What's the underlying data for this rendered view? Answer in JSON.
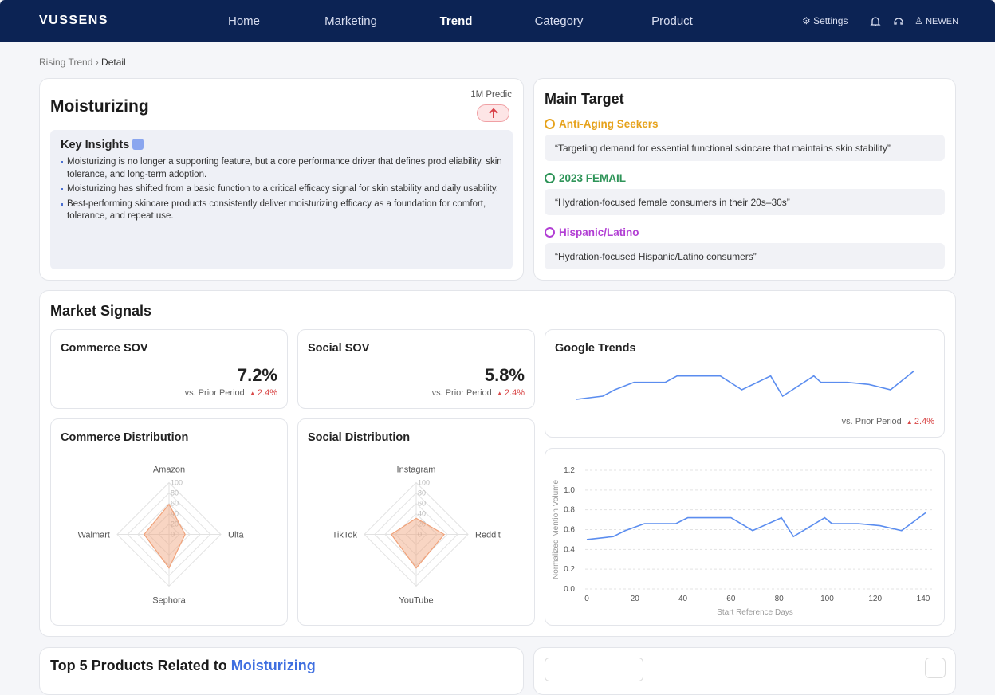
{
  "nav": {
    "brand": "VUSSENS",
    "items": [
      "Home",
      "Marketing",
      "Trend",
      "Category",
      "Product"
    ],
    "settings": "Settings",
    "user": "NEWEN"
  },
  "breadcrumb": [
    "Rising Trend",
    "Detail"
  ],
  "trend": {
    "title": "Moisturizing",
    "prediction_label": "1M Predic",
    "insights_title": "Key Insights",
    "insights": [
      "Moisturizing is no longer a supporting feature, but a core performance driver that defines prod eliability, skin tolerance, and long-term adoption.",
      "Moisturizing has shifted from a basic function to a critical efficacy signal for skin stability and daily usability.",
      "Best-performing skincare products consistently deliver moisturizing efficacy as a foundation for comfort, tolerance, and repeat use."
    ]
  },
  "main_target": {
    "title": "Main Target",
    "targets": [
      {
        "name": "Anti-Aging Seekers",
        "color": "#e6a21b",
        "quote": "“Targeting demand for essential functional skincare that maintains skin stability”"
      },
      {
        "name": "2023 FEMAIL",
        "color": "#2e9458",
        "quote": "“Hydration-focused female consumers in their 20s–30s”"
      },
      {
        "name": "Hispanic/Latino",
        "color": "#b23fd4",
        "quote": "“Hydration-focused Hispanic/Latino consumers”"
      }
    ]
  },
  "market_signals": {
    "title": "Market Signals",
    "commerce_sov": {
      "title": "Commerce SOV",
      "value": "7.2%",
      "comparison": "vs. Prior Period",
      "change": "2.4%"
    },
    "social_sov": {
      "title": "Social SOV",
      "value": "5.8%",
      "comparison": "vs. Prior Period",
      "change": "2.4%"
    }
  },
  "bottom": {
    "title": "Top 5 Products Related to",
    "keyword": "Moisturizing"
  },
  "chart_data": [
    {
      "type": "radar",
      "title": "Commerce Distribution",
      "categories": [
        "Amazon",
        "Ulta",
        "Sephora",
        "Walmart"
      ],
      "values": [
        58,
        31,
        65,
        48
      ],
      "rlim": [
        0,
        100
      ],
      "rticks": [
        0,
        20,
        40,
        60,
        80,
        100
      ],
      "color": "#f0a27a"
    },
    {
      "type": "radar",
      "title": "Social Distribution",
      "categories": [
        "Instagram",
        "Reddit",
        "YouTube",
        "TikTok"
      ],
      "values": [
        31,
        54,
        65,
        48
      ],
      "rlim": [
        0,
        100
      ],
      "rticks": [
        0,
        20,
        40,
        60,
        80,
        100
      ],
      "color": "#f0a27a"
    },
    {
      "type": "line",
      "title": "Google Trends",
      "x": [
        0,
        11,
        16,
        24,
        37,
        42,
        60,
        69,
        81,
        86,
        99,
        102,
        113,
        122,
        131,
        141
      ],
      "values": [
        0.5,
        0.53,
        0.59,
        0.66,
        0.66,
        0.72,
        0.72,
        0.59,
        0.72,
        0.53,
        0.72,
        0.66,
        0.66,
        0.64,
        0.59,
        0.77
      ],
      "color": "#5b8def",
      "comparison": "vs. Prior Period",
      "change": "2.4%"
    },
    {
      "type": "line",
      "x": [
        0,
        11,
        16,
        24,
        37,
        42,
        60,
        69,
        81,
        86,
        99,
        102,
        113,
        122,
        131,
        141
      ],
      "values": [
        0.5,
        0.53,
        0.59,
        0.66,
        0.66,
        0.72,
        0.72,
        0.59,
        0.72,
        0.53,
        0.72,
        0.66,
        0.66,
        0.64,
        0.59,
        0.77
      ],
      "color": "#5b8def",
      "xlim": [
        0,
        140
      ],
      "xticks": [
        0,
        20,
        40,
        60,
        80,
        100,
        120,
        140
      ],
      "ylim": [
        0,
        1.2
      ],
      "yticks": [
        {
          "value": 0,
          "label": "0.0"
        },
        0.2,
        0.4,
        0.6,
        0.8,
        {
          "value": 1,
          "label": "1.0"
        },
        1.2
      ],
      "grid": true,
      "xlabel": "Start Reference Days",
      "ylabel": "Normalized Mention Volume"
    }
  ]
}
